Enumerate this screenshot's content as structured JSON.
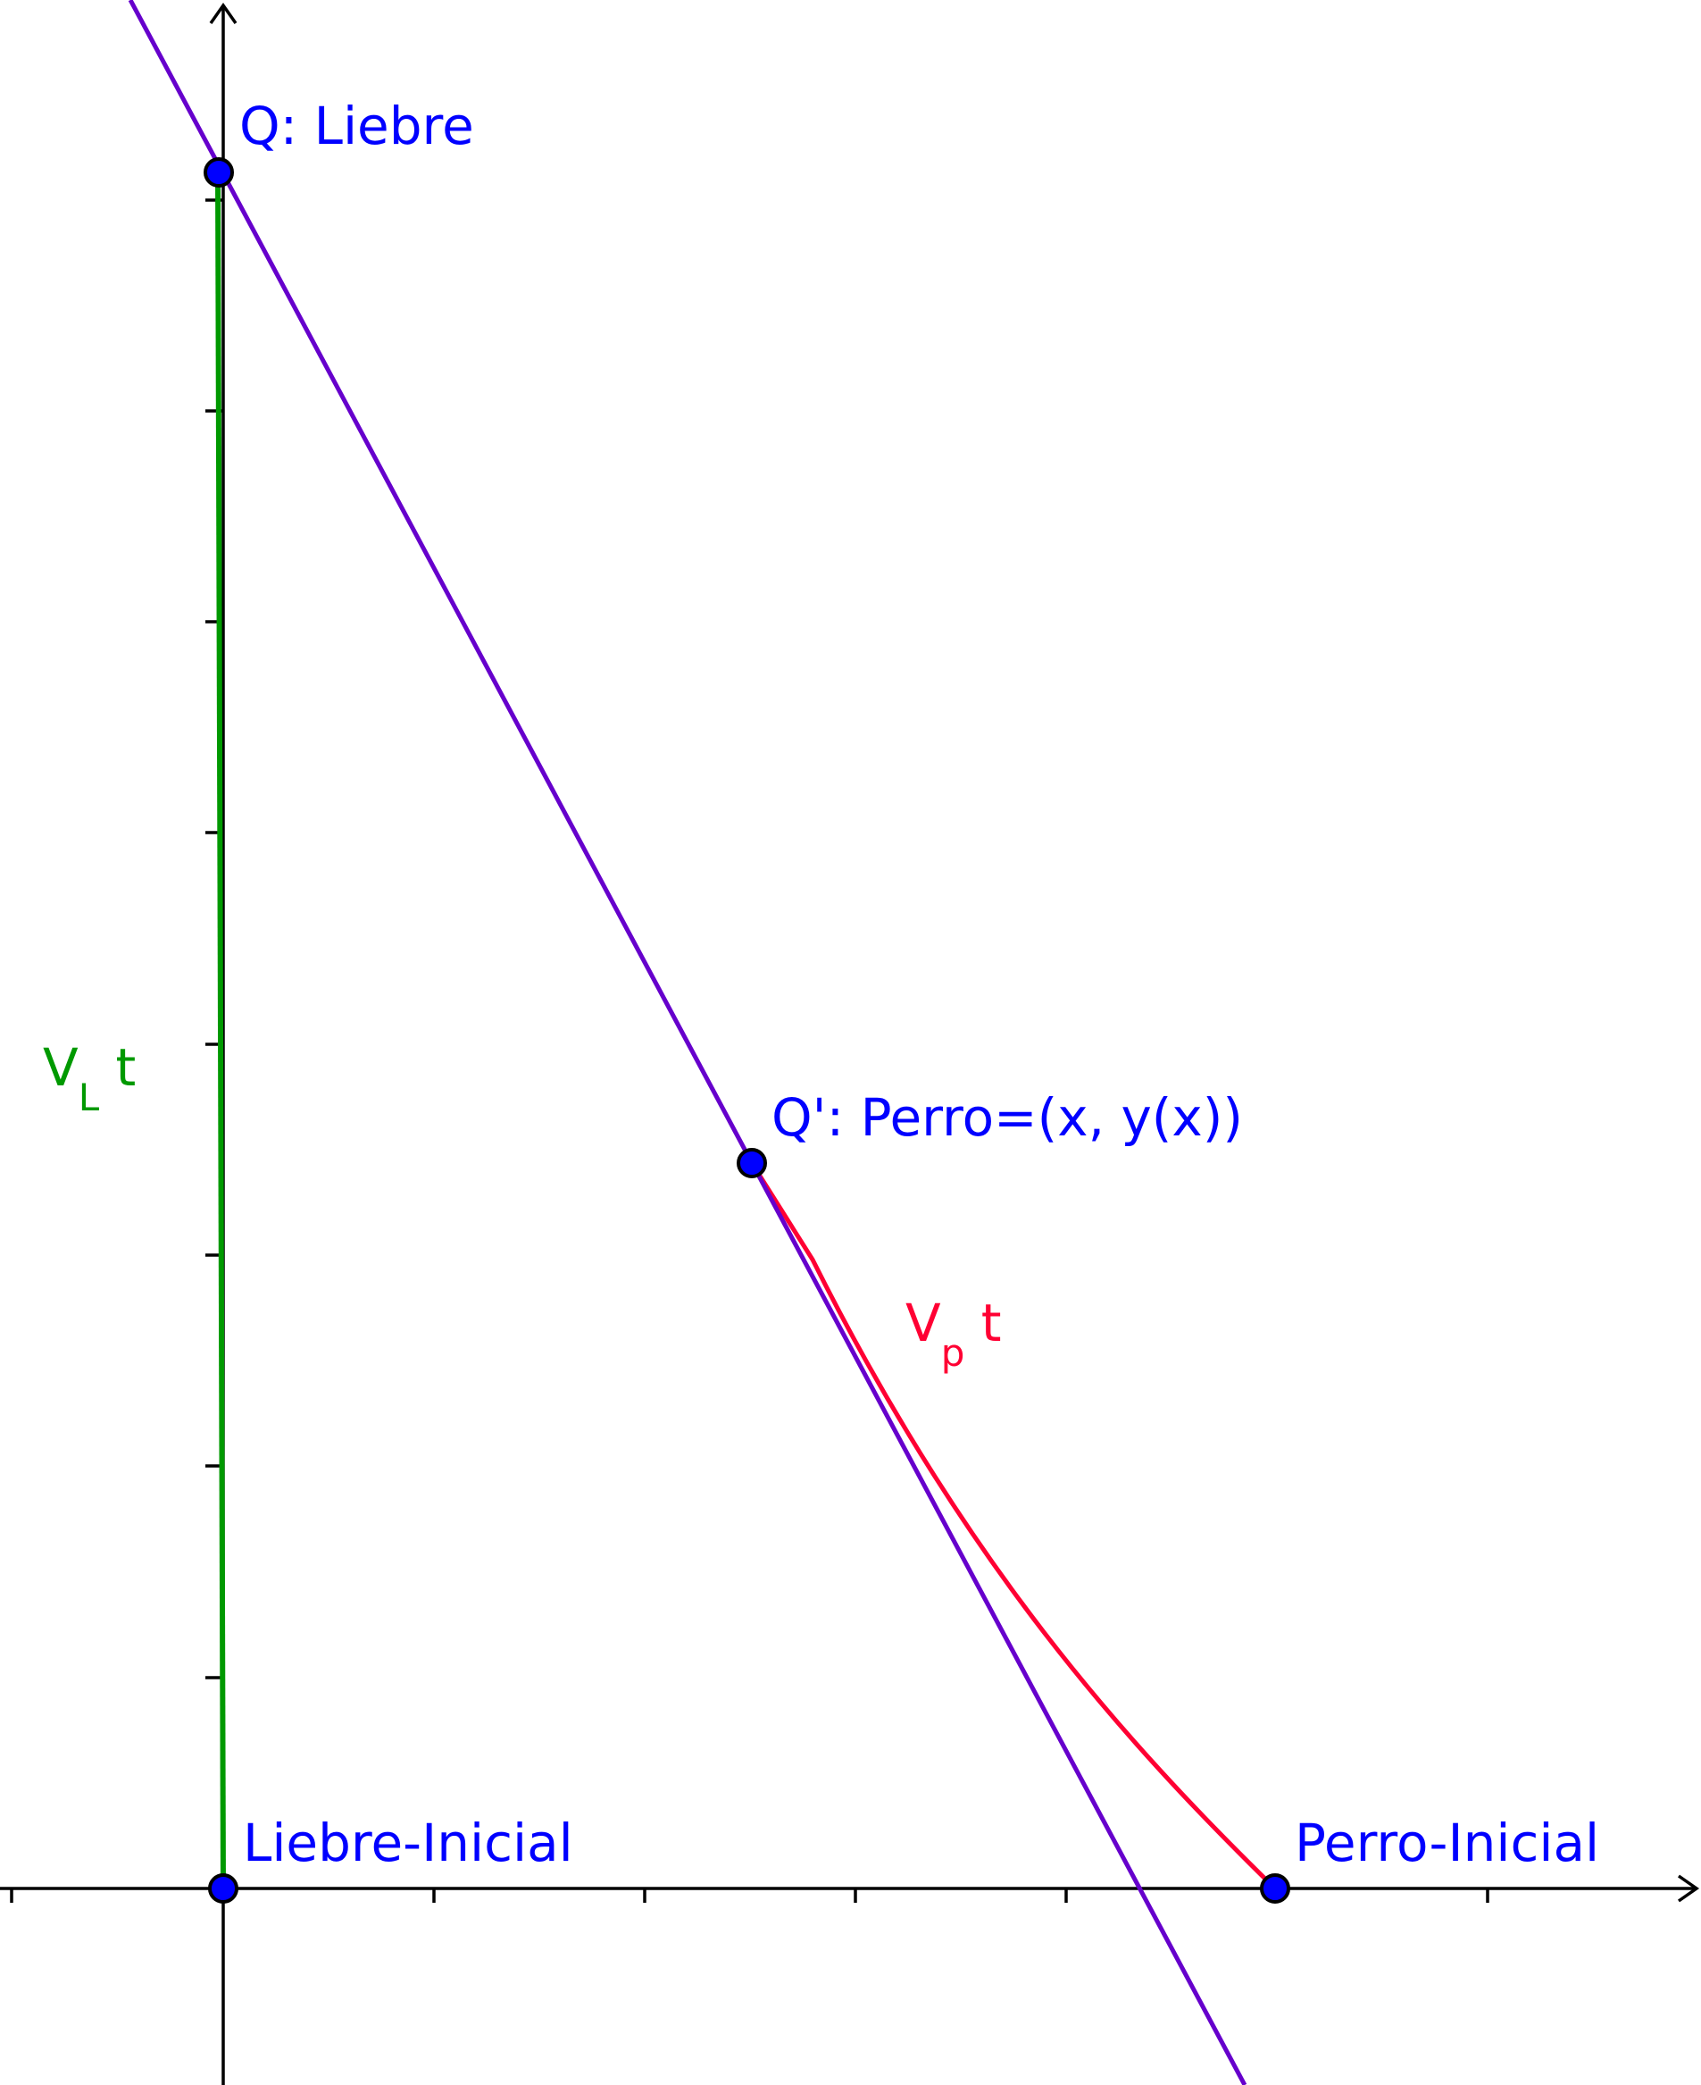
{
  "labels": {
    "liebre": "Q: Liebre",
    "perro": "Q': Perro=(x, y(x))",
    "liebre_inicial": "Liebre-Inicial",
    "perro_inicial": "Perro-Inicial",
    "vl_base": "V",
    "vl_sub": "L",
    "vl_tail": " t",
    "vp_base": "V",
    "vp_sub": "p",
    "vp_tail": " t"
  },
  "colors": {
    "axis": "#000000",
    "point_fill": "#0000ff",
    "point_stroke": "#000000",
    "label_blue": "#0000ff",
    "tangent_line": "#6600cc",
    "hare_path": "#009900",
    "dog_path": "#ff0033"
  }
}
